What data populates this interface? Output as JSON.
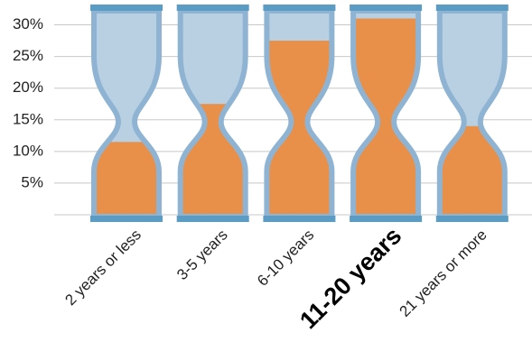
{
  "chart_data": {
    "type": "hourglass",
    "categories": [
      "2 years or less",
      "3-5 years",
      "6-10 years",
      "11-20 years",
      "21 years or more"
    ],
    "values": [
      11.5,
      17.5,
      27.5,
      31,
      14
    ],
    "color": "#e8904a",
    "glass_color": "#b8d0e2",
    "frame_color": "#5b9cc4",
    "highlight_index": 3,
    "ylim": [
      0,
      32.5
    ],
    "yticks": [
      {
        "value": 5,
        "label": "5%"
      },
      {
        "value": 10,
        "label": "10%"
      },
      {
        "value": 15,
        "label": "15%"
      },
      {
        "value": 20,
        "label": "20%"
      },
      {
        "value": 25,
        "label": "25%"
      },
      {
        "value": 30,
        "label": "30%"
      }
    ],
    "grid": true
  }
}
